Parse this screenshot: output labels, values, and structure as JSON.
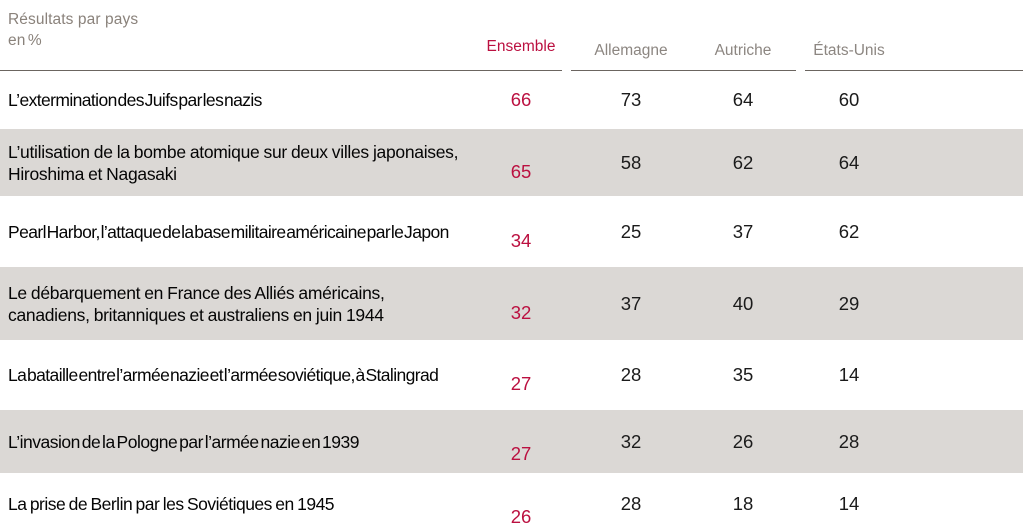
{
  "header": {
    "title": "Résultats par pays",
    "unit": "en %"
  },
  "colors": {
    "accent_red": "#bb1040",
    "muted_gray": "#8c8681",
    "row_stripe_gray": "#dbd8d5",
    "rule_gray": "#6b6560"
  },
  "chart_data": {
    "type": "table",
    "title": "Résultats par pays en %",
    "columns": [
      "Ensemble",
      "Allemagne",
      "Autriche",
      "États-Unis"
    ],
    "rows": [
      {
        "label": "L’extermination des Juifs par les nazis",
        "values": [
          66,
          73,
          64,
          60
        ]
      },
      {
        "label": "L’utilisation de la bombe atomique sur deux villes japonaises, Hiroshima et Nagasaki",
        "values": [
          65,
          58,
          62,
          64
        ]
      },
      {
        "label": "Pearl Harbor, l’attaque de la base militaire américaine par le Japon",
        "values": [
          34,
          25,
          37,
          62
        ]
      },
      {
        "label": "Le débarquement en France des Alliés américains, canadiens, britanniques et australiens en juin 1944",
        "values": [
          32,
          37,
          40,
          29
        ]
      },
      {
        "label": "La bataille entre l’armée nazie et l’armée soviétique, à Stalingrad",
        "values": [
          27,
          28,
          35,
          14
        ]
      },
      {
        "label": "L’invasion de la Pologne par l’armée nazie en 1939",
        "values": [
          27,
          32,
          26,
          28
        ]
      },
      {
        "label": "La prise de Berlin par les Soviétiques en 1945",
        "values": [
          26,
          28,
          18,
          14
        ]
      }
    ]
  }
}
